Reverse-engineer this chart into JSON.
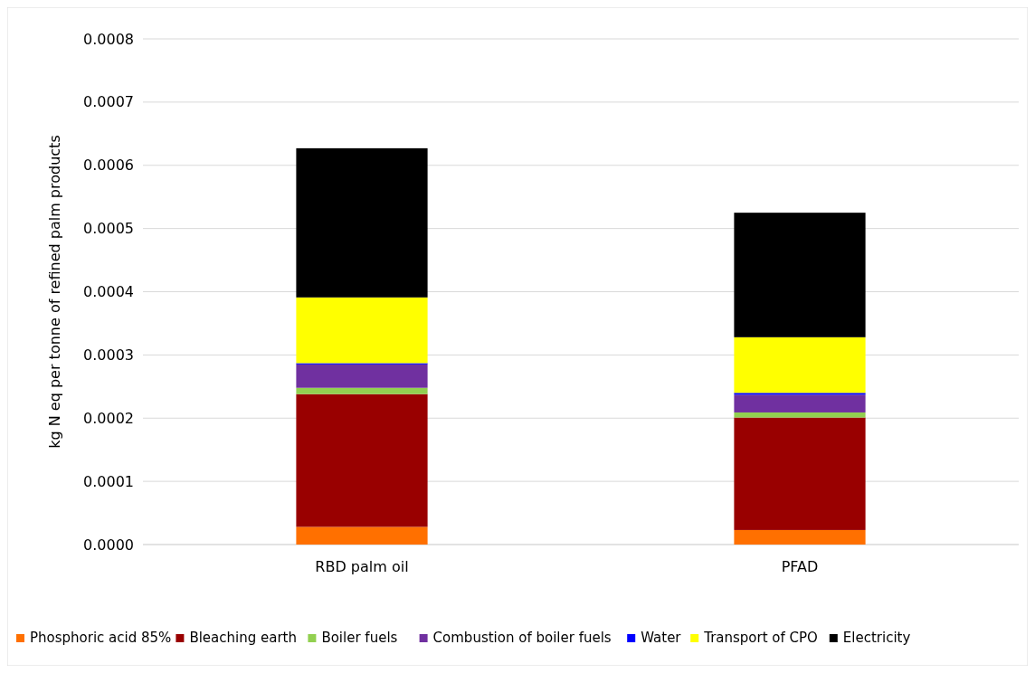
{
  "chart_data": {
    "type": "bar",
    "stacked": true,
    "ylabel": "kg N eq per tonne of refined palm products",
    "categories": [
      "RBD palm oil",
      "PFAD"
    ],
    "series": [
      {
        "name": "Phosphoric acid 85%",
        "color": "#ff7000",
        "values": [
          2.8e-05,
          2.3e-05
        ]
      },
      {
        "name": "Bleaching earth",
        "color": "#990000",
        "values": [
          0.00021,
          0.000178
        ]
      },
      {
        "name": "Boiler fuels",
        "color": "#92d050",
        "values": [
          1e-05,
          8e-06
        ]
      },
      {
        "name": "Combustion of boiler fuels",
        "color": "#7030a0",
        "values": [
          3.7e-05,
          2.8e-05
        ]
      },
      {
        "name": "Water",
        "color": "#0000ff",
        "values": [
          2e-06,
          3e-06
        ]
      },
      {
        "name": "Transport of CPO",
        "color": "#ffff00",
        "values": [
          0.000104,
          8.8e-05
        ]
      },
      {
        "name": "Electricity",
        "color": "#000000",
        "values": [
          0.000236,
          0.000197
        ]
      }
    ],
    "ylim": [
      0,
      0.0008
    ],
    "yticks": [
      {
        "value": 0,
        "label": "0.0000"
      },
      {
        "value": 0.0001,
        "label": "0.0001"
      },
      {
        "value": 0.0002,
        "label": "0.0002"
      },
      {
        "value": 0.0003,
        "label": "0.0003"
      },
      {
        "value": 0.0004,
        "label": "0.0004"
      },
      {
        "value": 0.0005,
        "label": "0.0005"
      },
      {
        "value": 0.0006,
        "label": "0.0006"
      },
      {
        "value": 0.0007,
        "label": "0.0007"
      },
      {
        "value": 0.0008,
        "label": "0.0008"
      }
    ],
    "grid": "y",
    "legend": "bottom"
  }
}
